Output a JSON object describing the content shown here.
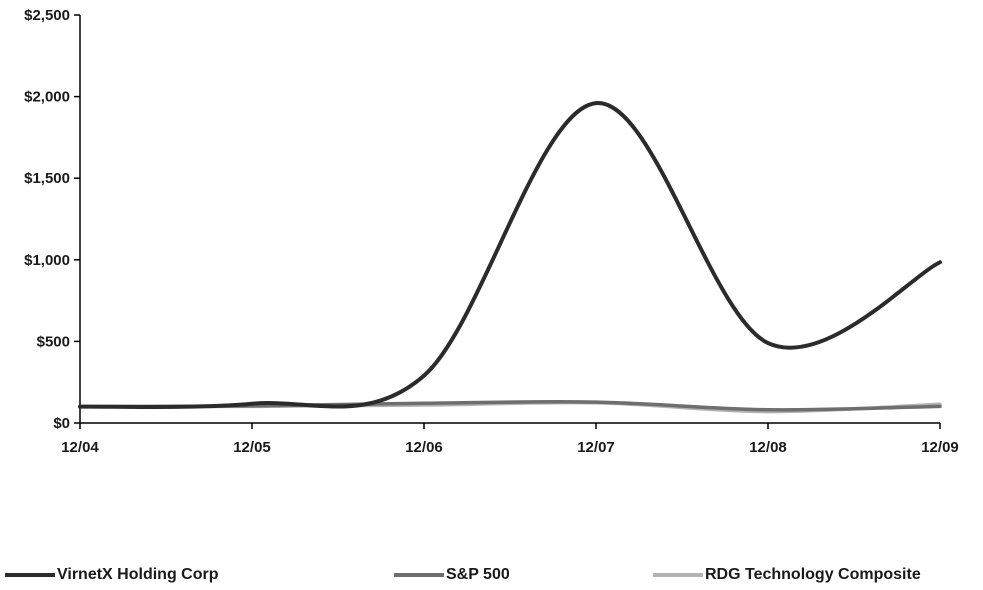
{
  "chart_data": {
    "type": "line",
    "title": "",
    "xlabel": "",
    "ylabel": "",
    "categories": [
      "12/04",
      "12/05",
      "12/06",
      "12/07",
      "12/08",
      "12/09"
    ],
    "ylim": [
      0,
      2500
    ],
    "y_ticks": [
      "$0",
      "$500",
      "$1,000",
      "$1,500",
      "$2,000",
      "$2,500"
    ],
    "series": [
      {
        "name": "VirnetX Holding Corp",
        "color": "#2b2b2b",
        "values": [
          100,
          118,
          290,
          1960,
          490,
          985
        ]
      },
      {
        "name": "S&P 500",
        "color": "#6e6e6e",
        "values": [
          100,
          105,
          121,
          128,
          81,
          102
        ]
      },
      {
        "name": "RDG Technology Composite",
        "color": "#b3b3b3",
        "values": [
          100,
          102,
          110,
          124,
          70,
          115
        ]
      }
    ],
    "legend_position": "bottom",
    "grid": false
  }
}
